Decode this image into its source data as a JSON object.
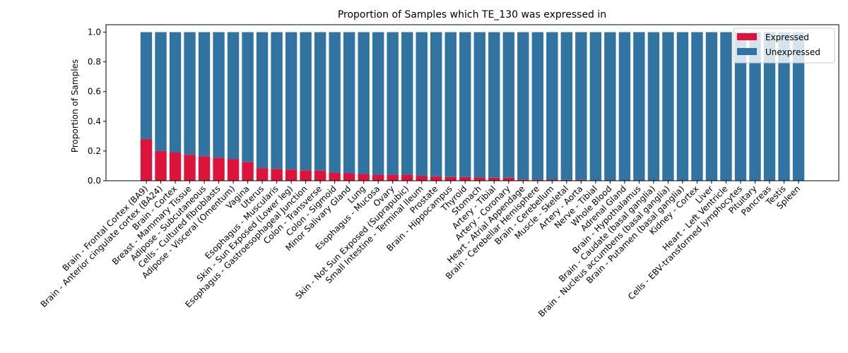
{
  "chart_data": {
    "type": "bar",
    "stacked": true,
    "title": "Proportion of Samples which TE_130 was expressed in",
    "xlabel": "",
    "ylabel": "Proportion of Samples",
    "ylim": [
      0,
      1.05
    ],
    "yticks": [
      "0.0",
      "0.2",
      "0.4",
      "0.6",
      "0.8",
      "1.0"
    ],
    "grid": false,
    "legend_position": "top-right",
    "categories": [
      "Brain - Frontal Cortex (BA9)",
      "Brain - Anterior cingulate cortex (BA24)",
      "Brain - Cortex",
      "Breast - Mammary Tissue",
      "Adipose - Subcutaneous",
      "Cells - Cultured fibroblasts",
      "Adipose - Visceral (Omentum)",
      "Vagina",
      "Uterus",
      "Esophagus - Muscularis",
      "Skin - Sun Exposed (Lower leg)",
      "Esophagus - Gastroesophageal Junction",
      "Colon - Transverse",
      "Colon - Sigmoid",
      "Minor Salivary Gland",
      "Lung",
      "Esophagus - Mucosa",
      "Ovary",
      "Skin - Not Sun Exposed (Suprapubic)",
      "Small Intestine - Terminal Ileum",
      "Prostate",
      "Brain - Hippocampus",
      "Thyroid",
      "Stomach",
      "Artery - Tibial",
      "Artery - Coronary",
      "Heart - Atrial Appendage",
      "Brain - Cerebellar Hemisphere",
      "Brain - Cerebellum",
      "Muscle - Skeletal",
      "Artery - Aorta",
      "Nerve - Tibial",
      "Whole Blood",
      "Adrenal Gland",
      "Brain - Hypothalamus",
      "Brain - Caudate (basal ganglia)",
      "Brain - Nucleus accumbens (basal ganglia)",
      "Brain - Putamen (basal ganglia)",
      "Kidney - Cortex",
      "Liver",
      "Heart - Left Ventricle",
      "Cells - EBV-transformed lymphocytes",
      "Pituitary",
      "Pancreas",
      "Testis",
      "Spleen"
    ],
    "series": [
      {
        "name": "Expressed",
        "color": "#dc143c",
        "values": [
          0.28,
          0.2,
          0.19,
          0.175,
          0.165,
          0.155,
          0.145,
          0.125,
          0.085,
          0.08,
          0.075,
          0.07,
          0.068,
          0.055,
          0.05,
          0.045,
          0.04,
          0.04,
          0.04,
          0.033,
          0.03,
          0.025,
          0.025,
          0.022,
          0.02,
          0.02,
          0.008,
          0.008,
          0.007,
          0.006,
          0.006,
          0,
          0,
          0,
          0,
          0,
          0,
          0,
          0,
          0,
          0,
          0,
          0,
          0,
          0,
          0
        ]
      },
      {
        "name": "Unexpressed",
        "color": "#3274a1",
        "values": [
          0.72,
          0.8,
          0.81,
          0.825,
          0.835,
          0.845,
          0.855,
          0.875,
          0.915,
          0.92,
          0.925,
          0.93,
          0.932,
          0.945,
          0.95,
          0.955,
          0.96,
          0.96,
          0.96,
          0.967,
          0.97,
          0.975,
          0.975,
          0.978,
          0.98,
          0.98,
          0.992,
          0.992,
          0.993,
          0.994,
          0.994,
          1,
          1,
          1,
          1,
          1,
          1,
          1,
          1,
          1,
          1,
          1,
          1,
          1,
          1,
          1
        ]
      }
    ]
  }
}
